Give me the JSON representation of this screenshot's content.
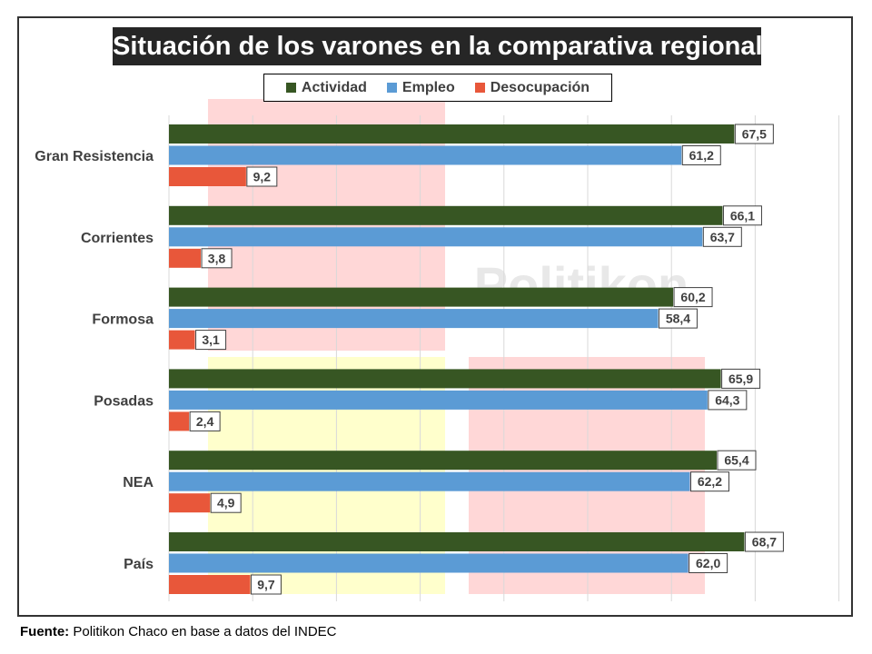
{
  "title": "Situación de los varones en la comparativa regional",
  "source": {
    "label": "Fuente:",
    "text": "Politikon Chaco en base a datos del INDEC"
  },
  "watermark": "Politikon",
  "colors": {
    "Actividad": "#375623",
    "Empleo": "#5b9bd5",
    "Desocupación": "#e8573a",
    "highlight_red": "#ffd7d7",
    "highlight_yellow": "#ffffcc"
  },
  "chart_data": {
    "type": "bar",
    "orientation": "horizontal",
    "categories": [
      "Gran Resistencia",
      "Corrientes",
      "Formosa",
      "Posadas",
      "NEA",
      "País"
    ],
    "series": [
      {
        "name": "Actividad",
        "values": [
          67.5,
          66.1,
          60.2,
          65.9,
          65.4,
          68.7
        ],
        "labels": [
          "67,5",
          "66,1",
          "60,2",
          "65,9",
          "65,4",
          "68,7"
        ]
      },
      {
        "name": "Empleo",
        "values": [
          61.2,
          63.7,
          58.4,
          64.3,
          62.2,
          62.0
        ],
        "labels": [
          "61,2",
          "63,7",
          "58,4",
          "64,3",
          "62,2",
          "62,0"
        ]
      },
      {
        "name": "Desocupación",
        "values": [
          9.2,
          3.8,
          3.1,
          2.4,
          4.9,
          9.7
        ],
        "labels": [
          "9,2",
          "3,8",
          "3,1",
          "2,4",
          "4,9",
          "9,7"
        ]
      }
    ],
    "xlim": [
      0,
      80
    ],
    "grid": true,
    "legend_position": "top"
  }
}
